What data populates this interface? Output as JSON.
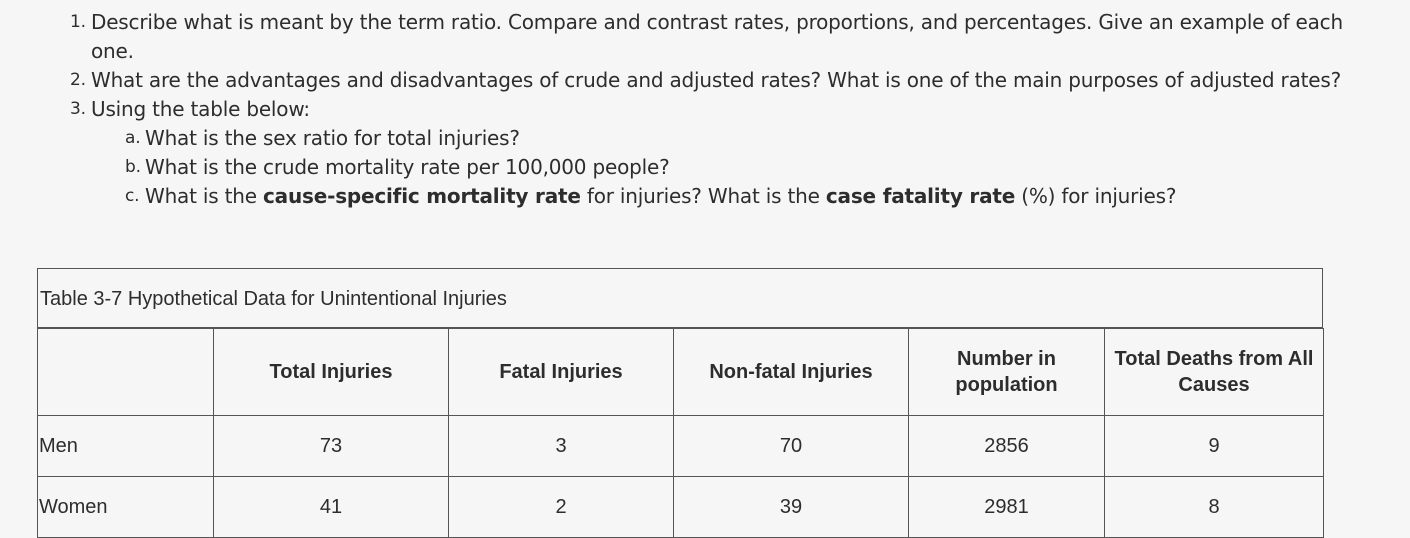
{
  "questions": [
    {
      "num": "1.",
      "text": "Describe what is meant by the term ratio. Compare and contrast rates, proportions, and percentages. Give an example of each one."
    },
    {
      "num": "2.",
      "text": "What are the advantages and disadvantages of crude and adjusted rates? What is one of the main purposes of adjusted rates?"
    },
    {
      "num": "3.",
      "text": "Using the table below:"
    }
  ],
  "subquestions": [
    {
      "num": "a.",
      "text": "What is the sex ratio for total injuries?"
    },
    {
      "num": "b.",
      "text": "What is the crude mortality rate per 100,000 people?"
    },
    {
      "num": "c.",
      "parts": [
        "What is the ",
        "cause-specific mortality rate",
        " for injuries? What is the ",
        "case fatality rate",
        " (%) for injuries?"
      ]
    }
  ],
  "table": {
    "caption": "Table 3-7 Hypothetical Data for Unintentional Injuries",
    "headers": [
      "",
      "Total Injuries",
      "Fatal Injuries",
      "Non-fatal Injuries",
      "Number in population",
      "Total Deaths from All Causes"
    ],
    "rows": [
      [
        "Men",
        "73",
        "3",
        "70",
        "2856",
        "9"
      ],
      [
        "Women",
        "41",
        "2",
        "39",
        "2981",
        "8"
      ]
    ]
  }
}
